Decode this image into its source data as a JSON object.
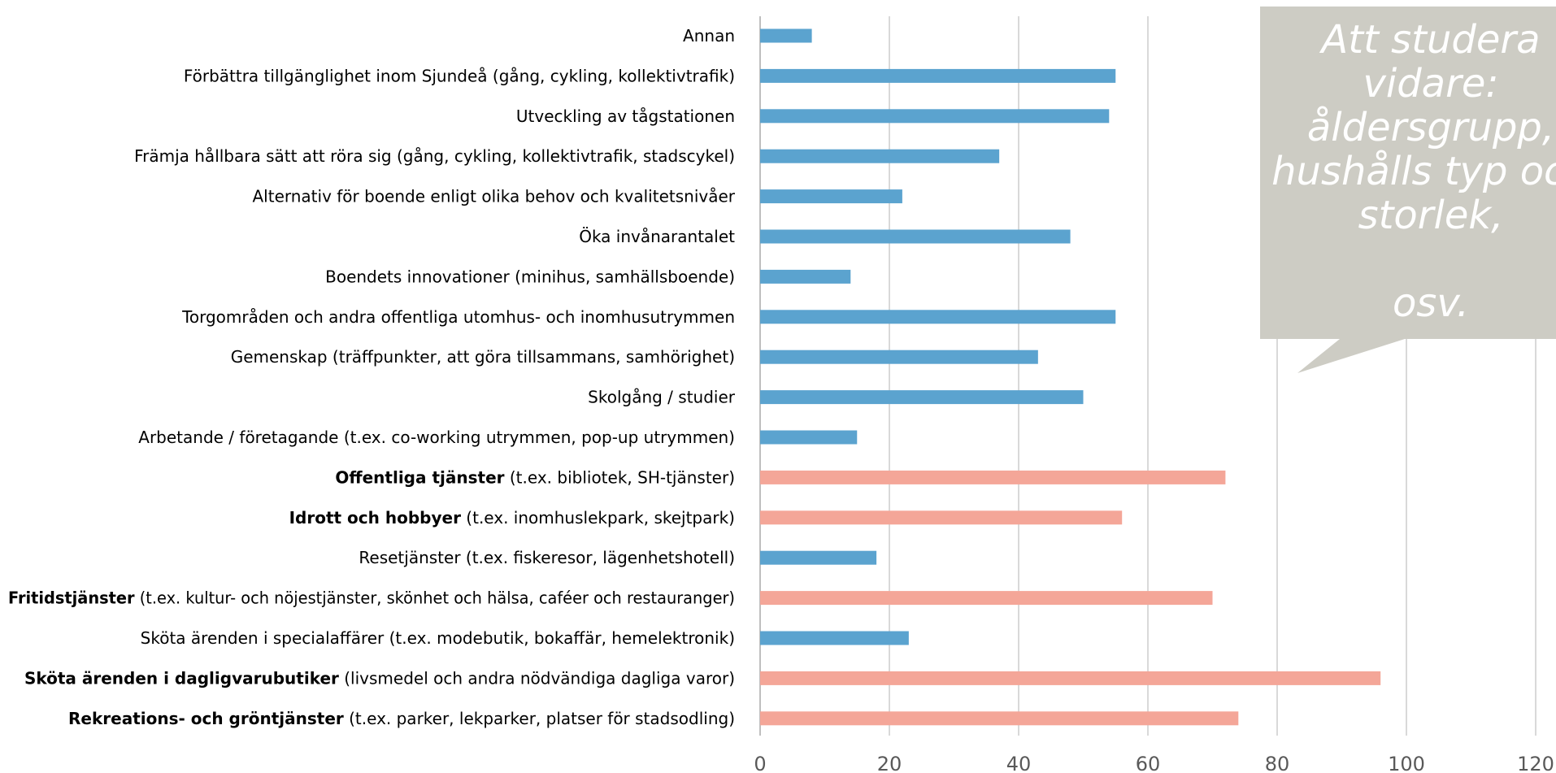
{
  "chart_data": {
    "type": "bar",
    "orientation": "horizontal",
    "xlim": [
      0,
      120
    ],
    "xticks": [
      0,
      20,
      40,
      60,
      80,
      100,
      120
    ],
    "grid": "vertical",
    "colors": {
      "default": "#5BA3CF",
      "highlight": "#F4A698"
    },
    "categories": [
      {
        "bold": "",
        "label": "Annan",
        "value": 8,
        "highlight": false
      },
      {
        "bold": "",
        "label": "Förbättra tillgänglighet inom Sjundeå (gång, cykling, kollektivtrafik)",
        "value": 55,
        "highlight": false
      },
      {
        "bold": "",
        "label": "Utveckling av tågstationen",
        "value": 54,
        "highlight": false
      },
      {
        "bold": "",
        "label": "Främja hållbara sätt att röra sig (gång, cykling, kollektivtrafik, stadscykel)",
        "value": 37,
        "highlight": false
      },
      {
        "bold": "",
        "label": "Alternativ för boende enligt olika behov och kvalitetsnivåer",
        "value": 22,
        "highlight": false
      },
      {
        "bold": "",
        "label": "Öka invånarantalet",
        "value": 48,
        "highlight": false
      },
      {
        "bold": "",
        "label": "Boendets innovationer (minihus, samhällsboende)",
        "value": 14,
        "highlight": false
      },
      {
        "bold": "",
        "label": "Torgområden och andra offentliga utomhus- och inomhusutrymmen",
        "value": 55,
        "highlight": false
      },
      {
        "bold": "",
        "label": "Gemenskap (träffpunkter, att göra tillsammans, samhörighet)",
        "value": 43,
        "highlight": false
      },
      {
        "bold": "",
        "label": "Skolgång / studier",
        "value": 50,
        "highlight": false
      },
      {
        "bold": "",
        "label": "Arbetande / företagande (t.ex. co-working utrymmen, pop-up utrymmen)",
        "value": 15,
        "highlight": false
      },
      {
        "bold": "Offentliga tjänster",
        "label": " (t.ex. bibliotek, SH-tjänster)",
        "value": 72,
        "highlight": true
      },
      {
        "bold": "Idrott och hobbyer",
        "label": " (t.ex. inomhuslekpark, skejtpark)",
        "value": 56,
        "highlight": true
      },
      {
        "bold": "",
        "label": "Resetjänster (t.ex. fiskeresor, lägenhetshotell)",
        "value": 18,
        "highlight": false
      },
      {
        "bold": "Fritidstjänster",
        "label": " (t.ex. kultur- och nöjestjänster, skönhet och hälsa, caféer och restauranger)",
        "value": 70,
        "highlight": true
      },
      {
        "bold": "",
        "label": "Sköta ärenden i specialaffärer (t.ex. modebutik, bokaffär, hemelektronik)",
        "value": 23,
        "highlight": false
      },
      {
        "bold": "Sköta ärenden i dagligvarubutiker",
        "label": " (livsmedel och andra nödvändiga dagliga varor)",
        "value": 96,
        "highlight": true
      },
      {
        "bold": "Rekreations- och gröntjänster",
        "label": " (t.ex. parker, lekparker, platser för stadsodling)",
        "value": 74,
        "highlight": true
      }
    ],
    "annotation": {
      "text": "Att studera vidare:\nåldersgrupp,\nhushålls typ och\nstorlek,\n\nosv.",
      "color": "#CDCCC4"
    }
  }
}
